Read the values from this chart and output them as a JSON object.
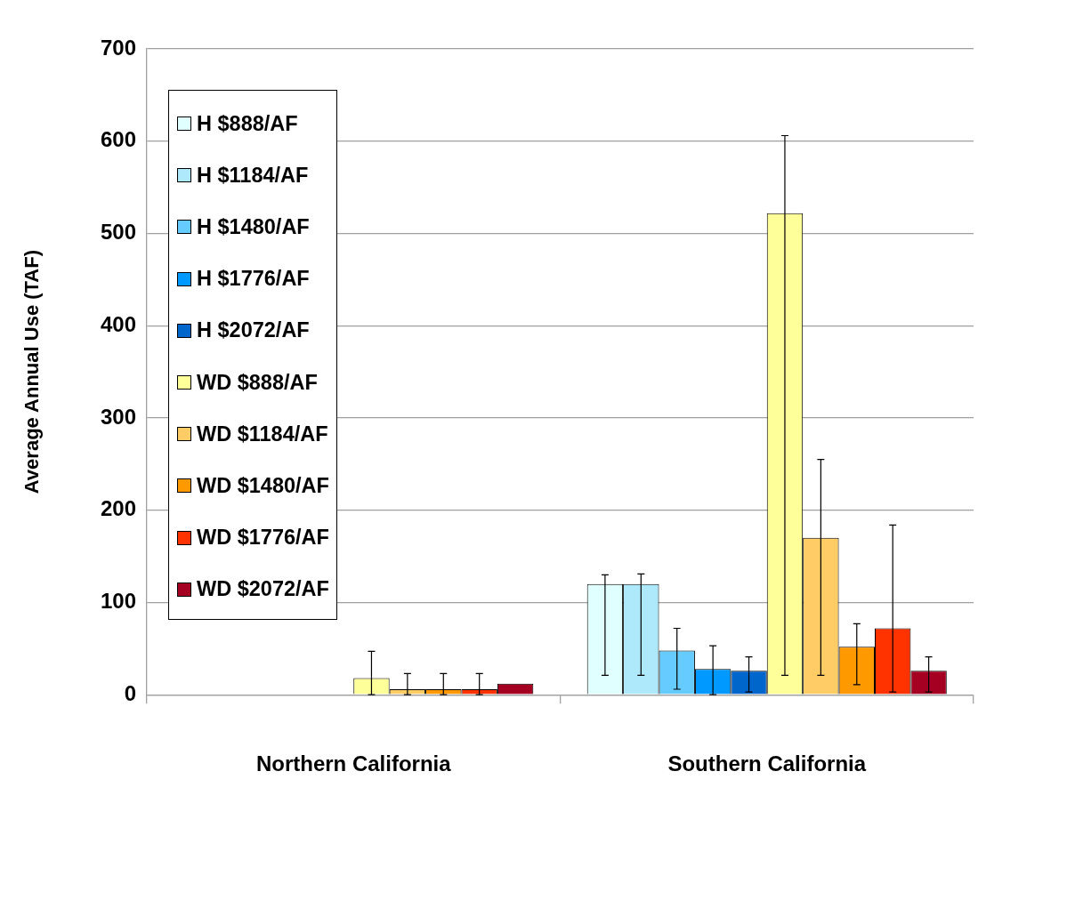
{
  "chart_data": {
    "type": "bar",
    "ylabel": "Average Annual Use (TAF)",
    "categories": [
      "Northern California",
      "Southern California"
    ],
    "ylim": [
      0,
      700
    ],
    "yticks": [
      0,
      100,
      200,
      300,
      400,
      500,
      600,
      700
    ],
    "grid": "y",
    "legend": "top left",
    "series": [
      {
        "name": "H $888/AF",
        "color": "#e0ffff",
        "values": [
          0,
          120
        ],
        "errors": [
          null,
          [
            21,
            130
          ]
        ]
      },
      {
        "name": "H $1184/AF",
        "color": "#aee9fb",
        "values": [
          0,
          120
        ],
        "errors": [
          null,
          [
            21,
            131
          ]
        ]
      },
      {
        "name": "H $1480/AF",
        "color": "#66ccff",
        "values": [
          0,
          48
        ],
        "errors": [
          null,
          [
            6,
            72
          ]
        ]
      },
      {
        "name": "H $1776/AF",
        "color": "#0099ff",
        "values": [
          0,
          28
        ],
        "errors": [
          null,
          [
            0,
            53
          ]
        ]
      },
      {
        "name": "H $2072/AF",
        "color": "#0066cc",
        "values": [
          0,
          26
        ],
        "errors": [
          null,
          [
            3,
            41
          ]
        ]
      },
      {
        "name": "WD $888/AF",
        "color": "#ffff99",
        "values": [
          18,
          522
        ],
        "errors": [
          [
            0,
            47
          ],
          [
            21,
            606
          ]
        ]
      },
      {
        "name": "WD $1184/AF",
        "color": "#ffcc66",
        "values": [
          6,
          170
        ],
        "errors": [
          [
            0,
            23
          ],
          [
            21,
            255
          ]
        ]
      },
      {
        "name": "WD $1480/AF",
        "color": "#ff9900",
        "values": [
          6,
          52
        ],
        "errors": [
          [
            0,
            23
          ],
          [
            11,
            77
          ]
        ]
      },
      {
        "name": "WD $1776/AF",
        "color": "#ff3300",
        "values": [
          6,
          72
        ],
        "errors": [
          [
            0,
            23
          ],
          [
            3,
            184
          ]
        ]
      },
      {
        "name": "WD $2072/AF",
        "color": "#a50021",
        "values": [
          12,
          26
        ],
        "errors": [
          null,
          [
            3,
            41
          ]
        ]
      }
    ]
  }
}
